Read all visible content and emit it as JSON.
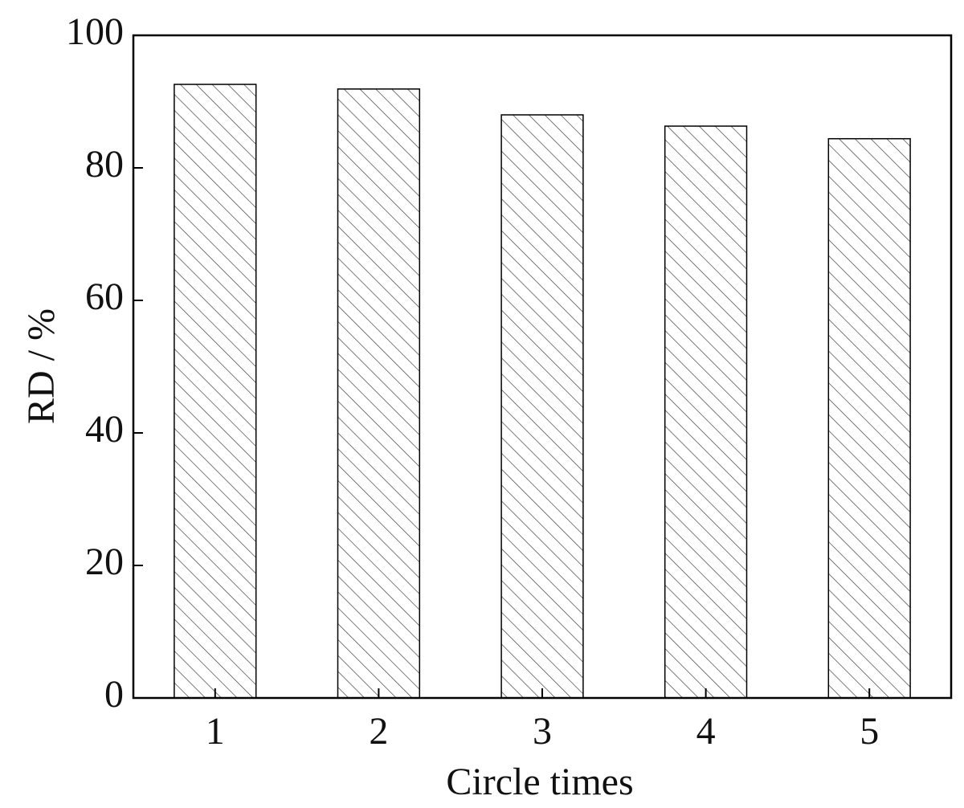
{
  "chart_data": {
    "type": "bar",
    "x_label": "Circle times",
    "y_label": "RD / %",
    "categories": [
      "1",
      "2",
      "3",
      "4",
      "5"
    ],
    "values": [
      92.6,
      91.9,
      88.0,
      86.3,
      84.4
    ],
    "color": "#000000",
    "ylim": [
      0,
      100
    ],
    "yticks": [
      0,
      20,
      40,
      60,
      80,
      100
    ],
    "grid": false
  }
}
